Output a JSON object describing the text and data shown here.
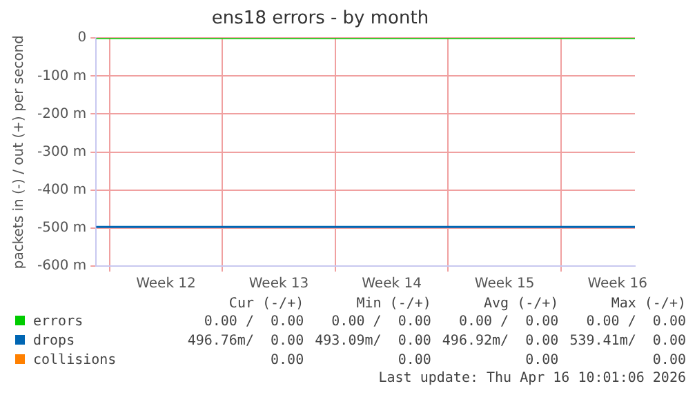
{
  "chart_data": {
    "type": "line",
    "title": "ens18 errors - by month",
    "ylabel": "packets in (-) / out (+) per second",
    "x": [
      "2026-03-15T04:00",
      "2026-04-17T14:00"
    ],
    "series": [
      {
        "name": "errors",
        "color": "#00cc00",
        "values": [
          0,
          0
        ]
      },
      {
        "name": "drops",
        "color": "#0066b3",
        "values": [
          -497,
          -497
        ]
      },
      {
        "name": "collisions",
        "color": "#ff8000",
        "values": [
          null,
          null
        ]
      }
    ],
    "xlim": [
      "2026-03-15T04:00",
      "2026-04-17T14:00"
    ],
    "xticks": [
      {
        "value": "2026-03-16",
        "label": null
      },
      {
        "value": "2026-03-19T12:00",
        "label": "Week 12"
      },
      {
        "value": "2026-03-23",
        "label": null
      },
      {
        "value": "2026-03-26T12:00",
        "label": "Week 13"
      },
      {
        "value": "2026-03-30",
        "label": null
      },
      {
        "value": "2026-04-02T12:00",
        "label": "Week 14"
      },
      {
        "value": "2026-04-06",
        "label": null
      },
      {
        "value": "2026-04-09T12:00",
        "label": "Week 15"
      },
      {
        "value": "2026-04-13",
        "label": null
      },
      {
        "value": "2026-04-16T12:00",
        "label": "Week 16"
      }
    ],
    "ylim": [
      -600,
      0
    ],
    "yticks": [
      0,
      {
        "value": -100,
        "label": "-100 m"
      },
      {
        "value": -200,
        "label": "-200 m"
      },
      {
        "value": -300,
        "label": "-300 m"
      },
      {
        "value": -400,
        "label": "-400 m"
      },
      {
        "value": -500,
        "label": "-500 m"
      },
      {
        "value": -600,
        "label": "-600 m"
      }
    ],
    "grid": true,
    "legend": "bottom",
    "marker": "none",
    "line_style": "solid",
    "annotations": [
      "Cur (-/+)",
      "Min (-/+)",
      "Avg (-/+)",
      "Max (-/+)",
      "0.00 /  0.00",
      "0.00 /  0.00",
      "0.00 /  0.00",
      "0.00 /  0.00",
      "496.76m/  0.00",
      "493.09m/  0.00",
      "496.92m/  0.00",
      "539.41m/  0.00",
      "0.00",
      "0.00",
      "0.00",
      "0.00",
      "Last update: Thu Apr 16 10:01:06 2026"
    ]
  }
}
